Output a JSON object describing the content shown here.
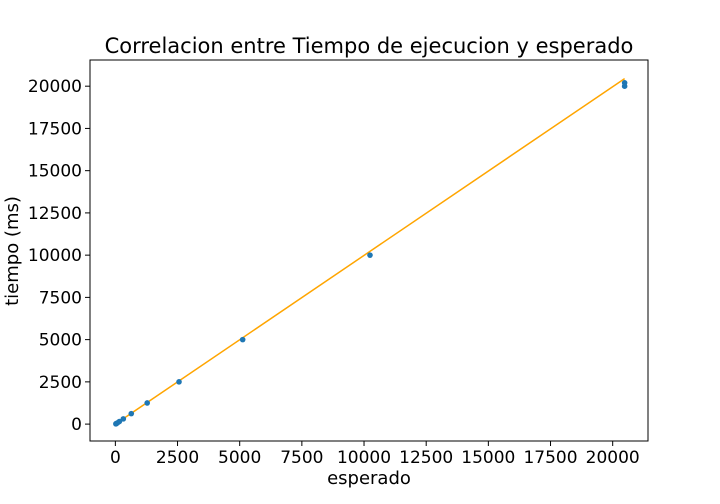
{
  "chart_data": {
    "type": "scatter",
    "title": "Correlacion entre Tiempo de ejecucion y esperado",
    "xlabel": "esperado",
    "ylabel": "tiempo (ms)",
    "xlim": [
      -1020,
      21420
    ],
    "ylim": [
      -1000,
      21550
    ],
    "xticks": [
      0,
      2500,
      5000,
      7500,
      10000,
      12500,
      15000,
      17500,
      20000
    ],
    "yticks": [
      0,
      2500,
      5000,
      7500,
      10000,
      12500,
      15000,
      17500,
      20000
    ],
    "xtick_labels": [
      "0",
      "2500",
      "5000",
      "7500",
      "10000",
      "12500",
      "15000",
      "17500",
      "20000"
    ],
    "ytick_labels": [
      "0",
      "2500",
      "5000",
      "7500",
      "10000",
      "12500",
      "15000",
      "17500",
      "20000"
    ],
    "grid": false,
    "series": [
      {
        "type": "scatter",
        "color": "#1f77b4",
        "x": [
          20,
          40,
          80,
          160,
          320,
          640,
          1280,
          2560,
          5120,
          10240,
          20480,
          20480
        ],
        "y": [
          15,
          35,
          70,
          150,
          310,
          620,
          1250,
          2500,
          5000,
          10000,
          20000,
          20200
        ]
      },
      {
        "type": "line",
        "color": "#ffa500",
        "x": [
          0,
          20480
        ],
        "y": [
          0,
          20450
        ]
      }
    ]
  }
}
